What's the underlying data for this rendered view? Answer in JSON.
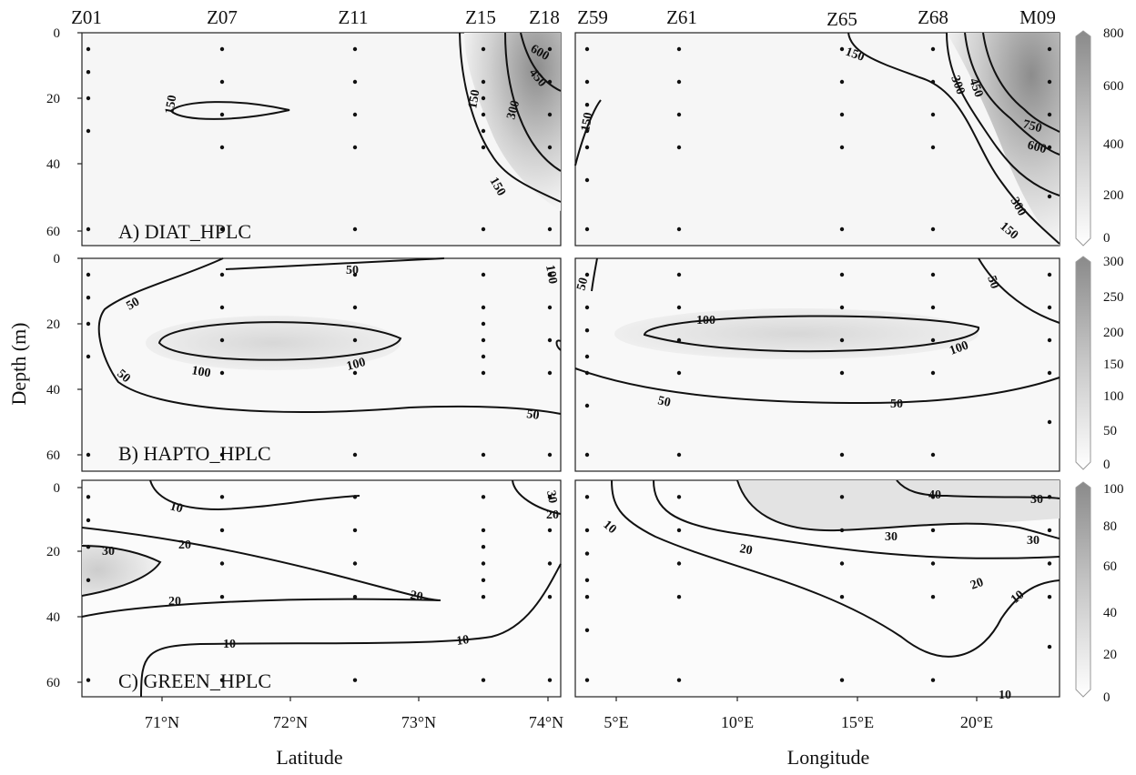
{
  "stations_left": [
    "Z01",
    "Z07",
    "Z11",
    "Z15",
    "Z18"
  ],
  "stations_right": [
    "Z59",
    "Z61",
    "Z65",
    "Z68",
    "M09"
  ],
  "y_axis_label": "Depth (m)",
  "x_axis_label_left": "Latitude",
  "x_axis_label_right": "Longitude",
  "chart_data": [
    {
      "type": "heatmap",
      "panel": "A",
      "title": "A) DIAT_HPLC",
      "ylim": [
        65,
        0
      ],
      "y_ticks": [
        "0",
        "20",
        "40",
        "60"
      ],
      "colorbar": {
        "ticks": [
          "0",
          "200",
          "400",
          "600",
          "800"
        ],
        "range": [
          0,
          800
        ]
      },
      "left_contour_labels": [
        "150",
        "150",
        "300",
        "150",
        "450",
        "600"
      ],
      "right_contour_labels": [
        "150",
        "150",
        "300",
        "450",
        "750",
        "600",
        "300",
        "150"
      ],
      "note": "colour scale runs from white (0) to dark grey (800)"
    },
    {
      "type": "heatmap",
      "panel": "B",
      "title": "B) HAPTO_HPLC",
      "ylim": [
        65,
        0
      ],
      "y_ticks": [
        "0",
        "20",
        "40",
        "60"
      ],
      "colorbar": {
        "ticks": [
          "0",
          "50",
          "100",
          "150",
          "200",
          "250",
          "300"
        ],
        "range": [
          0,
          300
        ]
      },
      "left_contour_labels": [
        "50",
        "50",
        "100",
        "100",
        "50",
        "50",
        "100"
      ],
      "right_contour_labels": [
        "50",
        "100",
        "100",
        "50",
        "50",
        "50"
      ]
    },
    {
      "type": "heatmap",
      "panel": "C",
      "title": "C) GREEN_HPLC",
      "ylim": [
        65,
        0
      ],
      "y_ticks": [
        "0",
        "20",
        "40",
        "60"
      ],
      "colorbar": {
        "ticks": [
          "0",
          "20",
          "40",
          "60",
          "80",
          "100"
        ],
        "range": [
          0,
          100
        ]
      },
      "left_contour_labels": [
        "10",
        "30",
        "20",
        "20",
        "20",
        "10",
        "10",
        "30",
        "20"
      ],
      "right_contour_labels": [
        "10",
        "20",
        "30",
        "40",
        "30",
        "30",
        "20",
        "10",
        "10"
      ],
      "x_ticks_left": [
        "71°N",
        "72°N",
        "73°N",
        "74°N"
      ],
      "x_ticks_right": [
        "5°E",
        "10°E",
        "15°E",
        "20°E"
      ]
    }
  ]
}
